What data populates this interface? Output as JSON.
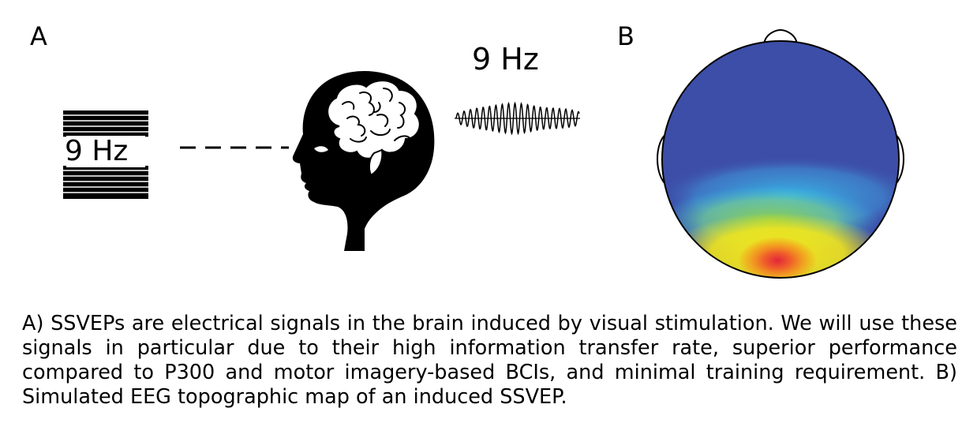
{
  "panels": {
    "a_label": "A",
    "b_label": "B"
  },
  "stimulus": {
    "text": "9 Hz"
  },
  "waveform": {
    "frequency_label": "9 Hz"
  },
  "topomap": {
    "colors": {
      "low": "#3d4ea8",
      "mid": "#37b6e6",
      "green": "#8ccf4a",
      "yellow": "#f2e61c",
      "orange": "#f39a1e",
      "peak": "#e2263a"
    }
  },
  "caption": {
    "text": "A) SSVEPs are electrical signals in the brain induced by visual stimulation. We will use these signals in particular due to their high information transfer rate, superior performance compared to P300 and motor imagery-based BCIs, and minimal training requirement. B) Simulated EEG topographic map of an induced SSVEP."
  }
}
